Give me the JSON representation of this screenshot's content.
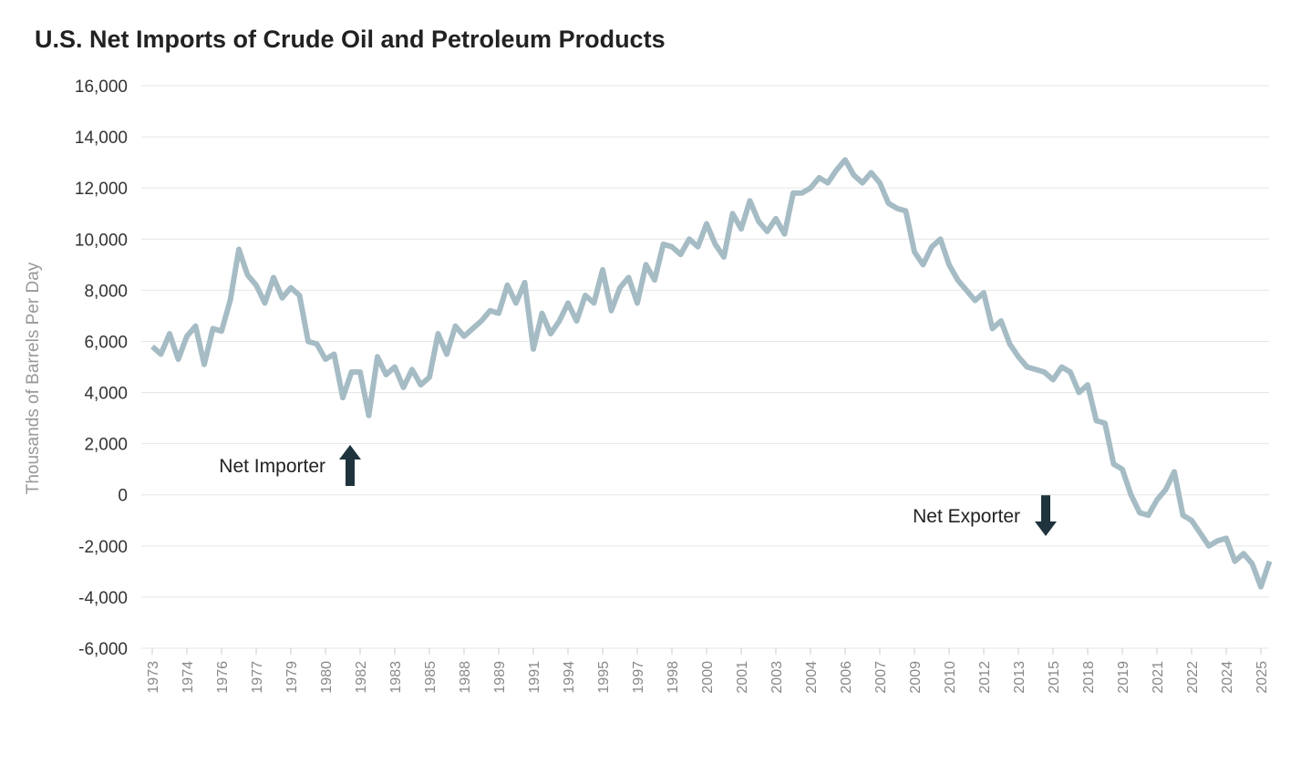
{
  "chart_data": {
    "type": "line",
    "title": "U.S. Net Imports of Crude Oil and Petroleum Products",
    "y_label": "Thousands of Barrels Per Day",
    "annotations": [
      "Net Importer",
      "Net Exporter"
    ],
    "categories": [
      "1973",
      null,
      null,
      null,
      "1974",
      null,
      null,
      null,
      "1976",
      null,
      null,
      null,
      "1977",
      null,
      null,
      null,
      "1979",
      null,
      null,
      null,
      "1980",
      null,
      null,
      null,
      "1982",
      null,
      null,
      null,
      "1983",
      null,
      null,
      null,
      "1985",
      null,
      null,
      null,
      "1988",
      null,
      null,
      null,
      "1989",
      null,
      null,
      null,
      "1991",
      null,
      null,
      null,
      "1994",
      null,
      null,
      null,
      "1995",
      null,
      null,
      null,
      "1997",
      null,
      null,
      null,
      "1998",
      null,
      null,
      null,
      "2000",
      null,
      null,
      null,
      "2001",
      null,
      null,
      null,
      "2003",
      null,
      null,
      null,
      "2004",
      null,
      null,
      null,
      "2006",
      null,
      null,
      null,
      "2007",
      null,
      null,
      null,
      "2009",
      null,
      null,
      null,
      "2010",
      null,
      null,
      null,
      "2012",
      null,
      null,
      null,
      "2013",
      null,
      null,
      null,
      "2015",
      null,
      null,
      null,
      "2018",
      null,
      null,
      null,
      "2019",
      null,
      null,
      null,
      "2021",
      null,
      null,
      null,
      "2022",
      null,
      null,
      null,
      "2024",
      null,
      null,
      null,
      "2025",
      null
    ],
    "series": [
      {
        "name": "Net Imports",
        "color": "#a6bcc5",
        "values": [
          5800,
          5500,
          6300,
          5300,
          6200,
          6600,
          5100,
          6500,
          6400,
          7600,
          9600,
          8600,
          8200,
          7500,
          8500,
          7700,
          8100,
          7800,
          6000,
          5900,
          5300,
          5500,
          3800,
          4800,
          4800,
          3100,
          5400,
          4700,
          5000,
          4200,
          4900,
          4300,
          4600,
          6300,
          5500,
          6600,
          6200,
          6500,
          6800,
          7200,
          7100,
          8200,
          7500,
          8300,
          5700,
          7100,
          6300,
          6800,
          7500,
          6800,
          7800,
          7500,
          8800,
          7200,
          8100,
          8500,
          7500,
          9000,
          8400,
          9800,
          9700,
          9400,
          10000,
          9700,
          10600,
          9800,
          9300,
          11000,
          10400,
          11500,
          10700,
          10300,
          10800,
          10200,
          11800,
          11800,
          12000,
          12400,
          12200,
          12700,
          13100,
          12500,
          12200,
          12600,
          12200,
          11400,
          11200,
          11100,
          9500,
          9000,
          9700,
          10000,
          9000,
          8400,
          8000,
          7600,
          7900,
          6500,
          6800,
          5900,
          5400,
          5000,
          4900,
          4800,
          4500,
          5000,
          4800,
          4000,
          4300,
          2900,
          2800,
          1200,
          1000,
          0,
          -700,
          -800,
          -200,
          200,
          900,
          -800,
          -1000,
          -1500,
          -2000,
          -1800,
          -1700,
          -2600,
          -2300,
          -2700,
          -3600,
          -2600
        ]
      }
    ],
    "ylim": [
      -6000,
      16000
    ],
    "yticks": [
      {
        "value": -6000,
        "label": "-6,000"
      },
      {
        "value": -4000,
        "label": "-4,000"
      },
      {
        "value": -2000,
        "label": "-2,000"
      },
      0,
      {
        "value": 2000,
        "label": "2,000"
      },
      {
        "value": 4000,
        "label": "4,000"
      },
      {
        "value": 6000,
        "label": "6,000"
      },
      {
        "value": 8000,
        "label": "8,000"
      },
      {
        "value": 10000,
        "label": "10,000"
      },
      {
        "value": 12000,
        "label": "12,000"
      },
      {
        "value": 14000,
        "label": "14,000"
      },
      {
        "value": 16000,
        "label": "16,000"
      }
    ],
    "grid": true
  }
}
